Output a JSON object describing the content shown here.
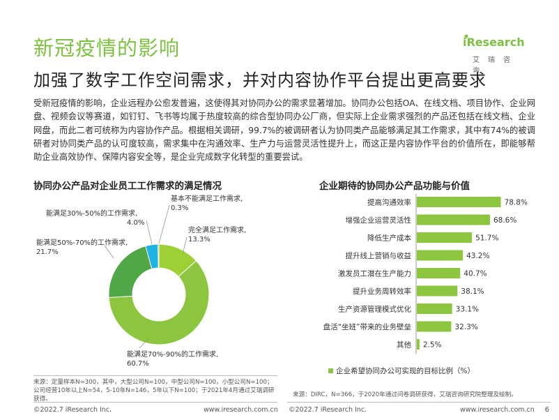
{
  "header": {
    "title": "新冠疫情的影响",
    "subtitle": "加强了数字工作空间需求，并对内容协作平台提出更高要求",
    "logo_text": "iResearch",
    "logo_cn": "艾瑞咨询"
  },
  "paragraph": "受新冠疫情的影响，企业远程办公愈发普遍，这使得其对协同办公的需求显著增加。协同办公包括OA、在线文档、项目协作、企业网盘、视频会议等赛道，如钉钉、飞书等均属于热度较高的综合型协同办公厂商，但实际上企业需求强烈的产品还包括在线文档、企业网盘，而此二者可统称为内容协作产品。根据相关调研，99.7%的被调研者认为协同类产品能够满足其工作需求，其中有74%的被调研者对协同类产品的认可度较高，需求集中在沟通效率、生产力与运营灵活性提升上，而这正是内容协作平台的价值所在，即能够帮助企业高效协作、保障内容安全等，是企业完成数字化转型的重要尝试。",
  "left": {
    "title": "协同办公产品对企业员工工作需求的满足情况",
    "source": "来源：定量样本N=300，其中，大型公司N=100，中型公司N=100，小型公司N=100；公司经营10年以上N=54，5-10年N=146，5年以下N=100；于2021年4月通过艾瑞调研获得。"
  },
  "right": {
    "title": "企业期待的协同办公产品功能与价值",
    "legend": "企业希望协同办公可实现的目标比例（%）",
    "source": "来源：DIRC，N=366，于2020年通过问卷调研获得，艾瑞咨询研究院整理及绘制。"
  },
  "footer": {
    "left_copy": "©2022.7 iResearch Inc.",
    "left_url": "www.iresearch.com.cn",
    "right_copy": "©2022.7 iResearch Inc.",
    "right_url": "www.iresearch.com.cn",
    "page": "6"
  },
  "colors": {
    "brand_green": "#7dc142",
    "bar_green": "#8cc63f",
    "slice_full": "#9ed035",
    "slice_7090": "#8cc63f",
    "slice_5070": "#4fa747",
    "slice_3050": "#1fb3e0",
    "slice_none": "#555555"
  },
  "chart_data": [
    {
      "type": "pie",
      "title": "协同办公产品对企业员工工作需求的满足情况",
      "slices": [
        {
          "label": "完全满足工作需求,",
          "value": 13.3,
          "value_label": "13.3%"
        },
        {
          "label": "能满足70%-90%的工作需求,",
          "value": 60.7,
          "value_label": "60.7%"
        },
        {
          "label": "能满足50%-70%的工作需求,",
          "value": 21.7,
          "value_label": "21.7%"
        },
        {
          "label": "能满足30%-50%的工作需求,",
          "value": 4.0,
          "value_label": "4.0%"
        },
        {
          "label": "基本不能满足工作需求,",
          "value": 0.3,
          "value_label": "0.3%"
        }
      ]
    },
    {
      "type": "bar",
      "orientation": "horizontal",
      "title": "企业期待的协同办公产品功能与价值",
      "categories": [
        "提高沟通效率",
        "增强企业运营灵活性",
        "降低生产成本",
        "提升线上营销与收益",
        "激发员工潜在生产能力",
        "提升业务周转效率",
        "生产资源管理模式优化",
        "盘活“坐班”带来的业务壁垒",
        "其他"
      ],
      "values": [
        78.8,
        68.6,
        51.7,
        43.2,
        40.7,
        38.1,
        33.1,
        32.3,
        2.5
      ],
      "value_labels": [
        "78.8%",
        "68.6%",
        "51.7%",
        "43.2%",
        "40.7%",
        "38.1%",
        "33.1%",
        "32.3%",
        "2.5%"
      ],
      "series": [
        {
          "name": "企业希望协同办公可实现的目标比例（%）",
          "values": [
            78.8,
            68.6,
            51.7,
            43.2,
            40.7,
            38.1,
            33.1,
            32.3,
            2.5
          ]
        }
      ],
      "xlim": [
        0,
        100
      ],
      "legend": "bottom"
    }
  ]
}
